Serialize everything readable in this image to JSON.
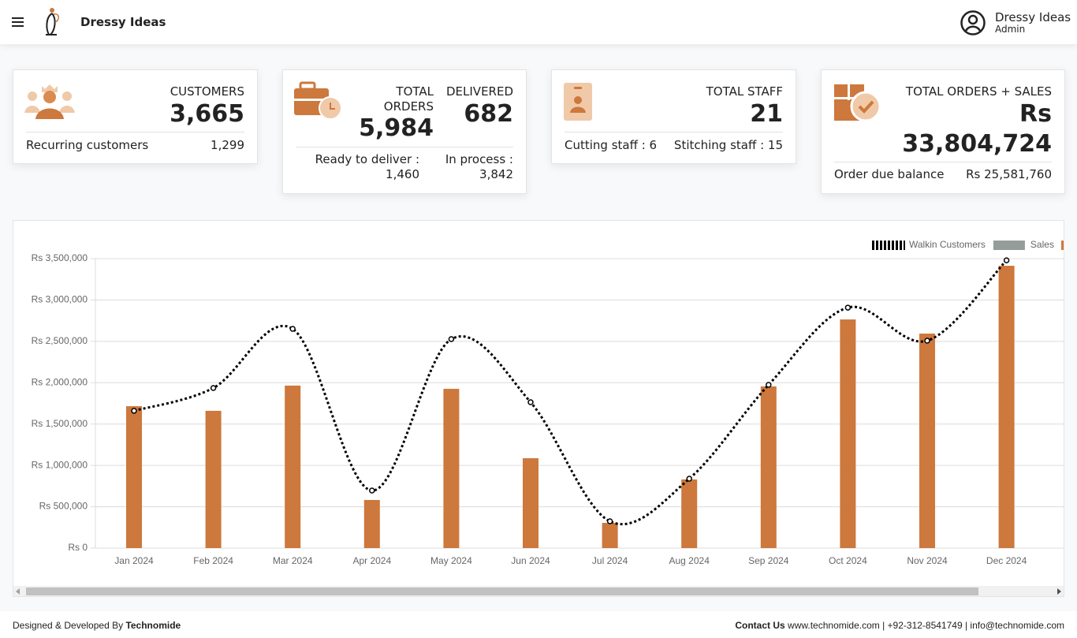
{
  "header": {
    "brand": "Dressy Ideas",
    "user_name": "Dressy Ideas",
    "user_role": "Admin"
  },
  "cards": {
    "customers": {
      "label": "CUSTOMERS",
      "value": "3,665",
      "sub_label": "Recurring customers",
      "sub_value": "1,299"
    },
    "orders": {
      "label": "TOTAL ORDERS",
      "value": "5,984",
      "delivered_label": "DELIVERED",
      "delivered_value": "682",
      "ready_label": "Ready to deliver :",
      "ready_value": "1,460",
      "process_label": "In process :",
      "process_value": "3,842"
    },
    "staff": {
      "label": "TOTAL STAFF",
      "value": "21",
      "cutting": "Cutting staff : 6",
      "stitching": "Stitching staff : 15"
    },
    "sales": {
      "label": "TOTAL ORDERS + SALES",
      "currency": "Rs",
      "value": "33,804,724",
      "due_label": "Order due balance",
      "due_value": "Rs 25,581,760"
    }
  },
  "chart_data": {
    "type": "bar",
    "categories": [
      "Jan 2024",
      "Feb 2024",
      "Mar 2024",
      "Apr 2024",
      "May 2024",
      "Jun 2024",
      "Jul 2024",
      "Aug 2024",
      "Sep 2024",
      "Oct 2024",
      "Nov 2024",
      "Dec 2024"
    ],
    "series": [
      {
        "name": "Walkin Customers",
        "type": "line",
        "color": "#000000",
        "values": [
          1660000,
          1936000,
          2651000,
          696000,
          2527000,
          1764000,
          324000,
          839000,
          1974000,
          2908000,
          2508000,
          3480000
        ]
      },
      {
        "name": "Sales",
        "type": "bar",
        "color": "#cd783c",
        "swatch": "#949d99",
        "values": [
          1716000,
          1660000,
          1965000,
          582000,
          1926000,
          1087000,
          305000,
          830000,
          1955000,
          2765000,
          2594000,
          3414000
        ]
      }
    ],
    "ylim": [
      0,
      3500000
    ],
    "yticks": [
      {
        "value": 0,
        "label": "Rs 0"
      },
      {
        "value": 500000,
        "label": "Rs 500,000"
      },
      {
        "value": 1000000,
        "label": "Rs 1,000,000"
      },
      {
        "value": 1500000,
        "label": "Rs 1,500,000"
      },
      {
        "value": 2000000,
        "label": "Rs 2,000,000"
      },
      {
        "value": 2500000,
        "label": "Rs 2,500,000"
      },
      {
        "value": 3000000,
        "label": "Rs 3,000,000"
      },
      {
        "value": 3500000,
        "label": "Rs 3,500,000"
      }
    ],
    "grid": true
  },
  "footer": {
    "designed": "Designed & Developed By",
    "company": "Technomide",
    "contact_label": "Contact Us",
    "contact": "www.technomide.com | +92-312-8541749 | info@technomide.com"
  }
}
